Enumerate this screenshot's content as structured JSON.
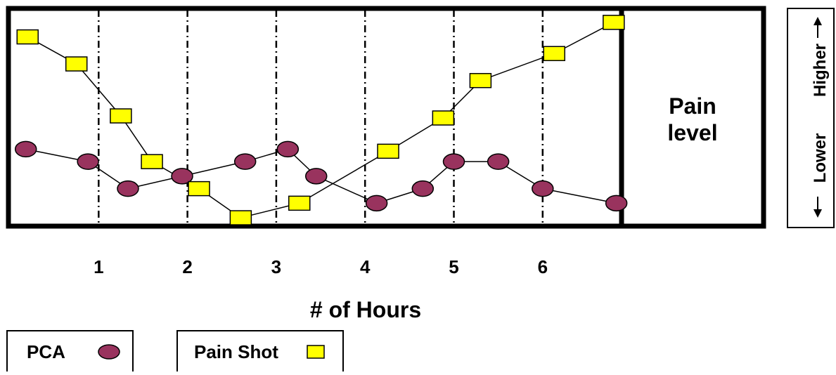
{
  "chart_data": {
    "type": "line",
    "xlabel": "# of Hours",
    "tick_labels": [
      "1",
      "2",
      "3",
      "4",
      "5",
      "6"
    ],
    "xlim": [
      0,
      7
    ],
    "ylim": [
      0,
      10
    ],
    "grid": "vertical dash-dot at each hour",
    "side_label": "Pain level",
    "y_scale_labels": {
      "low": "Lower",
      "high": "Higher"
    },
    "series": [
      {
        "name": "PCA",
        "marker": "circle",
        "color": "#99335e",
        "points": [
          {
            "x": 0.18,
            "y": 3.5
          },
          {
            "x": 0.88,
            "y": 2.9
          },
          {
            "x": 1.33,
            "y": 1.6
          },
          {
            "x": 1.94,
            "y": 2.2
          },
          {
            "x": 2.65,
            "y": 2.9
          },
          {
            "x": 3.13,
            "y": 3.5
          },
          {
            "x": 3.45,
            "y": 2.2
          },
          {
            "x": 4.13,
            "y": 0.9
          },
          {
            "x": 4.65,
            "y": 1.6
          },
          {
            "x": 5.0,
            "y": 2.9
          },
          {
            "x": 5.5,
            "y": 2.9
          },
          {
            "x": 6.0,
            "y": 1.6
          },
          {
            "x": 6.83,
            "y": 0.9
          }
        ]
      },
      {
        "name": "Pain Shot",
        "marker": "square",
        "color": "#ffff00",
        "points": [
          {
            "x": 0.2,
            "y": 8.9
          },
          {
            "x": 0.75,
            "y": 7.6
          },
          {
            "x": 1.25,
            "y": 5.1
          },
          {
            "x": 1.6,
            "y": 2.9
          },
          {
            "x": 2.13,
            "y": 1.6
          },
          {
            "x": 2.6,
            "y": 0.2
          },
          {
            "x": 3.26,
            "y": 0.9
          },
          {
            "x": 4.26,
            "y": 3.4
          },
          {
            "x": 4.88,
            "y": 5.0
          },
          {
            "x": 5.3,
            "y": 6.8
          },
          {
            "x": 6.13,
            "y": 8.1
          },
          {
            "x": 6.8,
            "y": 9.6
          }
        ]
      }
    ]
  },
  "legend": {
    "pca_label": "PCA",
    "shot_label": "Pain Shot"
  },
  "colors": {
    "pca": "#99335e",
    "shot": "#ffff00",
    "border": "#000000"
  }
}
